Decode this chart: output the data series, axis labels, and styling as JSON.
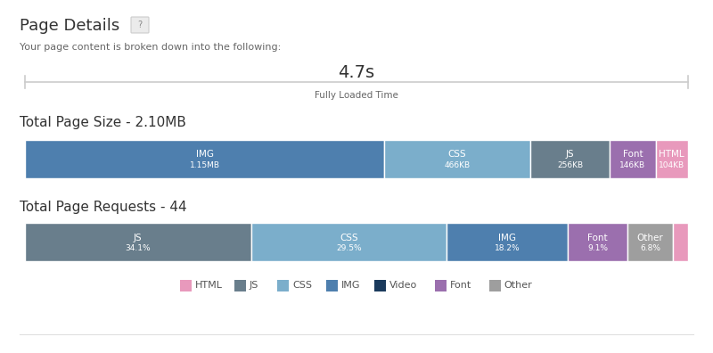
{
  "title": "Page Details",
  "subtitle": "Your page content is broken down into the following:",
  "loaded_time": "4.7s",
  "loaded_label": "Fully Loaded Time",
  "size_title": "Total Page Size - 2.10MB",
  "requests_title": "Total Page Requests - 44",
  "size_bars": [
    {
      "label": "IMG",
      "sublabel": "1.15MB",
      "value": 1150,
      "color": "#4e7fae"
    },
    {
      "label": "CSS",
      "sublabel": "466KB",
      "value": 466,
      "color": "#7baecb"
    },
    {
      "label": "JS",
      "sublabel": "256KB",
      "value": 256,
      "color": "#697e8c"
    },
    {
      "label": "Font",
      "sublabel": "146KB",
      "value": 146,
      "color": "#9b6fae"
    },
    {
      "label": "HTML",
      "sublabel": "104KB",
      "value": 104,
      "color": "#e899bc"
    }
  ],
  "request_bars": [
    {
      "label": "JS",
      "sublabel": "34.1%",
      "value": 34.1,
      "color": "#697e8c"
    },
    {
      "label": "CSS",
      "sublabel": "29.5%",
      "value": 29.5,
      "color": "#7baecb"
    },
    {
      "label": "IMG",
      "sublabel": "18.2%",
      "value": 18.2,
      "color": "#4e7fae"
    },
    {
      "label": "Font",
      "sublabel": "9.1%",
      "value": 9.1,
      "color": "#9b6fae"
    },
    {
      "label": "Other",
      "sublabel": "6.8%",
      "value": 6.8,
      "color": "#9e9e9e"
    },
    {
      "label": "",
      "sublabel": "",
      "value": 2.3,
      "color": "#e899bc"
    }
  ],
  "legend": [
    {
      "label": "HTML",
      "color": "#e899bc"
    },
    {
      "label": "JS",
      "color": "#697e8c"
    },
    {
      "label": "CSS",
      "color": "#7baecb"
    },
    {
      "label": "IMG",
      "color": "#4e7fae"
    },
    {
      "label": "Video",
      "color": "#1a3a5c"
    },
    {
      "label": "Font",
      "color": "#9b6fae"
    },
    {
      "label": "Other",
      "color": "#9e9e9e"
    }
  ],
  "bg_color": "#ffffff",
  "text_color": "#333333",
  "fig_width": 8.0,
  "fig_height": 3.96
}
